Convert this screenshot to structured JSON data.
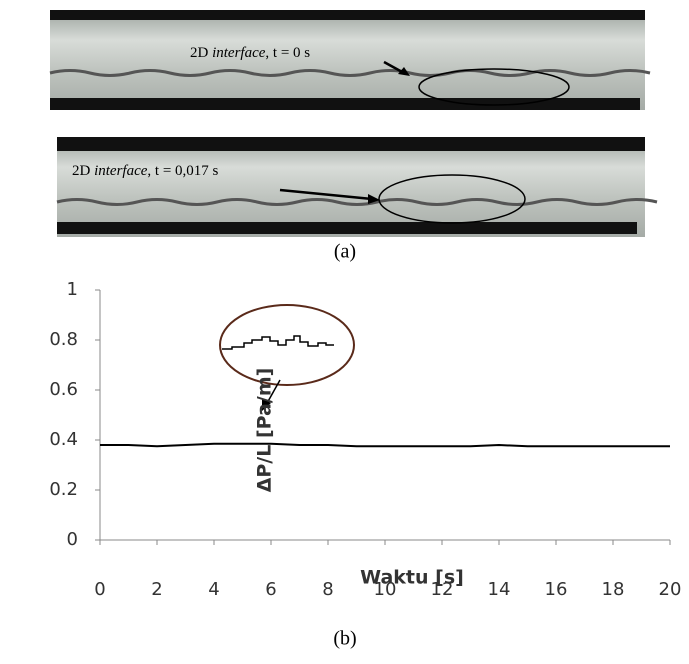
{
  "figure": {
    "annotations": [
      {
        "parts": [
          "2D ",
          "interface",
          ", t = 0 s"
        ]
      },
      {
        "parts": [
          "2D ",
          "interface",
          ", t = 0,017 s"
        ]
      }
    ],
    "panel_a_label": "(a)",
    "panel_b_label": "(b)"
  },
  "chart_data": {
    "type": "line",
    "x_label": "Waktu [s]",
    "y_label": "ΔP/L [Pa/m]",
    "x": [
      0,
      1,
      2,
      3,
      4,
      5,
      6,
      7,
      8,
      9,
      10,
      11,
      12,
      13,
      14,
      15,
      16,
      17,
      18,
      19,
      20
    ],
    "series": [
      {
        "color": "#000000",
        "values": [
          0.38,
          0.38,
          0.375,
          0.38,
          0.385,
          0.385,
          0.385,
          0.38,
          0.38,
          0.375,
          0.375,
          0.375,
          0.375,
          0.375,
          0.38,
          0.375,
          0.375,
          0.375,
          0.375,
          0.375,
          0.375
        ]
      }
    ],
    "xlim": [
      0,
      20
    ],
    "xticks": [
      0,
      2,
      4,
      6,
      8,
      10,
      12,
      14,
      16,
      18,
      20
    ],
    "ylim": [
      0,
      1
    ],
    "yticks": [
      0,
      0.2,
      0.4,
      0.6,
      0.8,
      1
    ],
    "grid": false
  }
}
